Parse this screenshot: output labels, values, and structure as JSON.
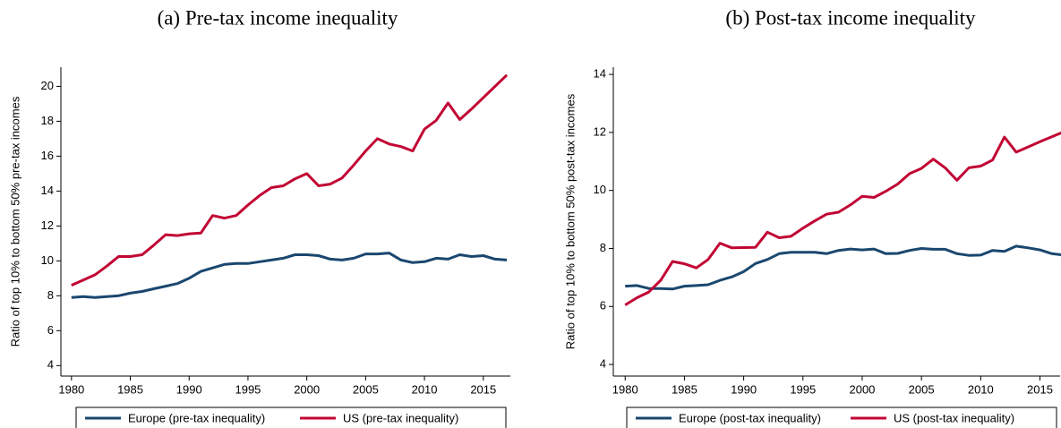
{
  "chart_data": [
    {
      "type": "line",
      "title": "(a) Pre-tax income inequality",
      "y_label": "Ratio of top 10% to bottom 50% pre-tax incomes",
      "x": [
        1980,
        1981,
        1982,
        1983,
        1984,
        1985,
        1986,
        1987,
        1988,
        1989,
        1990,
        1991,
        1992,
        1993,
        1994,
        1995,
        1996,
        1997,
        1998,
        1999,
        2000,
        2001,
        2002,
        2003,
        2004,
        2005,
        2006,
        2007,
        2008,
        2009,
        2010,
        2011,
        2012,
        2013,
        2014,
        2015,
        2016,
        2017
      ],
      "xlim": [
        1979.1,
        2017.3
      ],
      "xticks": [
        1980,
        1985,
        1990,
        1995,
        2000,
        2005,
        2010,
        2015
      ],
      "ylim": [
        3.4,
        21.1
      ],
      "yticks": [
        4,
        6,
        8,
        10,
        12,
        14,
        16,
        18,
        20
      ],
      "series": [
        {
          "name": "Europe (pre-tax inequality)",
          "color": "#1a476f",
          "values": [
            7.9,
            7.95,
            7.9,
            7.95,
            8.0,
            8.15,
            8.25,
            8.4,
            8.55,
            8.7,
            9.0,
            9.4,
            9.6,
            9.8,
            9.85,
            9.85,
            9.95,
            10.05,
            10.15,
            10.35,
            10.35,
            10.3,
            10.1,
            10.05,
            10.15,
            10.4,
            10.4,
            10.45,
            10.05,
            9.9,
            9.95,
            10.15,
            10.1,
            10.35,
            10.25,
            10.3,
            10.1,
            10.05
          ]
        },
        {
          "name": "US (pre-tax inequality)",
          "color": "#c10534",
          "values": [
            8.6,
            8.9,
            9.2,
            9.7,
            10.25,
            10.25,
            10.35,
            10.9,
            11.5,
            11.45,
            11.55,
            11.6,
            12.6,
            12.45,
            12.6,
            13.2,
            13.75,
            14.2,
            14.3,
            14.7,
            15.0,
            14.3,
            14.4,
            14.75,
            15.5,
            16.3,
            17.0,
            16.7,
            16.55,
            16.3,
            17.55,
            18.05,
            19.05,
            18.1,
            18.7,
            19.35,
            20.0,
            20.65
          ]
        }
      ]
    },
    {
      "type": "line",
      "title": "(b) Post-tax income inequality",
      "y_label": "Ratio of top 10% to bottom 50% post-tax incomes",
      "x": [
        1980,
        1981,
        1982,
        1983,
        1984,
        1985,
        1986,
        1987,
        1988,
        1989,
        1990,
        1991,
        1992,
        1993,
        1994,
        1995,
        1996,
        1997,
        1998,
        1999,
        2000,
        2001,
        2002,
        2003,
        2004,
        2005,
        2006,
        2007,
        2008,
        2009,
        2010,
        2011,
        2012,
        2013,
        2014,
        2015,
        2016,
        2017
      ],
      "xlim": [
        1979.0,
        2016.7
      ],
      "xticks": [
        1980,
        1985,
        1990,
        1995,
        2000,
        2005,
        2010,
        2015
      ],
      "ylim": [
        3.6,
        14.25
      ],
      "yticks": [
        4,
        6,
        8,
        10,
        12,
        14
      ],
      "series": [
        {
          "name": "Europe (post-tax inequality)",
          "color": "#1a476f",
          "values": [
            6.7,
            6.72,
            6.62,
            6.62,
            6.6,
            6.7,
            6.72,
            6.75,
            6.9,
            7.02,
            7.2,
            7.48,
            7.62,
            7.82,
            7.87,
            7.87,
            7.87,
            7.82,
            7.93,
            7.98,
            7.95,
            7.98,
            7.82,
            7.83,
            7.93,
            8.0,
            7.97,
            7.97,
            7.82,
            7.76,
            7.77,
            7.93,
            7.9,
            8.08,
            8.02,
            7.95,
            7.82,
            7.77
          ]
        },
        {
          "name": "US (post-tax inequality)",
          "color": "#c10534",
          "values": [
            6.05,
            6.3,
            6.5,
            6.9,
            7.55,
            7.47,
            7.33,
            7.62,
            8.18,
            8.02,
            8.03,
            8.04,
            8.56,
            8.37,
            8.42,
            8.7,
            8.95,
            9.18,
            9.25,
            9.5,
            9.8,
            9.76,
            9.97,
            10.22,
            10.58,
            10.76,
            11.08,
            10.78,
            10.35,
            10.78,
            10.84,
            11.05,
            11.84,
            11.32,
            11.5,
            11.68,
            11.85,
            12.02
          ]
        }
      ]
    }
  ]
}
